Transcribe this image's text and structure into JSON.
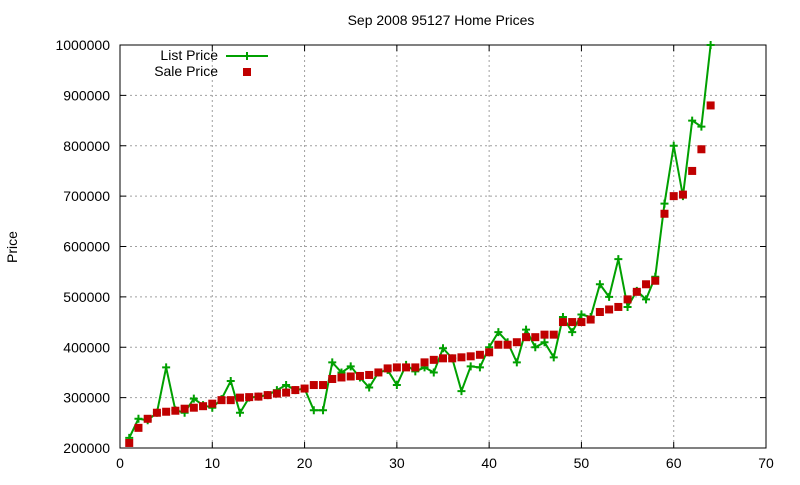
{
  "chart_data": {
    "type": "line",
    "title": "Sep 2008 95127 Home Prices",
    "xlabel": "",
    "ylabel": "Price",
    "xlim": [
      0,
      70
    ],
    "ylim": [
      200000,
      1000000
    ],
    "xticks": [
      0,
      10,
      20,
      30,
      40,
      50,
      60,
      70
    ],
    "yticks": [
      200000,
      300000,
      400000,
      500000,
      600000,
      700000,
      800000,
      900000,
      1000000
    ],
    "grid": true,
    "legend_position": "top-left",
    "colors": {
      "list": "#00a000",
      "sale": "#c00000"
    },
    "series": [
      {
        "name": "List Price",
        "style": "line-with-plus",
        "x": [
          1,
          2,
          3,
          4,
          5,
          6,
          7,
          8,
          9,
          10,
          11,
          12,
          13,
          14,
          15,
          16,
          17,
          18,
          19,
          20,
          21,
          22,
          23,
          24,
          25,
          26,
          27,
          28,
          29,
          30,
          31,
          32,
          33,
          34,
          35,
          36,
          37,
          38,
          39,
          40,
          41,
          42,
          43,
          44,
          45,
          46,
          47,
          48,
          49,
          50,
          51,
          52,
          53,
          54,
          55,
          56,
          57,
          58,
          59,
          60,
          61,
          62,
          63,
          64
        ],
        "y": [
          220000,
          258000,
          255000,
          270000,
          360000,
          275000,
          270000,
          298000,
          285000,
          280000,
          297000,
          333000,
          270000,
          300000,
          302000,
          305000,
          315000,
          325000,
          315000,
          318000,
          275000,
          275000,
          370000,
          350000,
          362000,
          340000,
          320000,
          350000,
          355000,
          325000,
          365000,
          352000,
          360000,
          350000,
          398000,
          378000,
          313000,
          362000,
          360000,
          400000,
          430000,
          410000,
          370000,
          435000,
          400000,
          410000,
          380000,
          460000,
          430000,
          465000,
          460000,
          525000,
          500000,
          575000,
          480000,
          512000,
          495000,
          540000,
          685000,
          800000,
          700000,
          850000,
          838000,
          1000000
        ]
      },
      {
        "name": "Sale Price",
        "style": "square-points",
        "x": [
          1,
          2,
          3,
          4,
          5,
          6,
          7,
          8,
          9,
          10,
          11,
          12,
          13,
          14,
          15,
          16,
          17,
          18,
          19,
          20,
          21,
          22,
          23,
          24,
          25,
          26,
          27,
          28,
          29,
          30,
          31,
          32,
          33,
          34,
          35,
          36,
          37,
          38,
          39,
          40,
          41,
          42,
          43,
          44,
          45,
          46,
          47,
          48,
          49,
          50,
          51,
          52,
          53,
          54,
          55,
          56,
          57,
          58,
          59,
          60,
          61,
          62,
          63,
          64
        ],
        "y": [
          210000,
          240000,
          258000,
          270000,
          272000,
          274000,
          278000,
          280000,
          283000,
          288000,
          295000,
          295000,
          300000,
          301000,
          302000,
          305000,
          308000,
          310000,
          315000,
          318000,
          325000,
          325000,
          337000,
          340000,
          342000,
          343000,
          345000,
          350000,
          358000,
          360000,
          360000,
          360000,
          370000,
          375000,
          378000,
          378000,
          380000,
          382000,
          385000,
          390000,
          405000,
          405000,
          410000,
          420000,
          420000,
          425000,
          425000,
          450000,
          450000,
          450000,
          455000,
          470000,
          475000,
          480000,
          495000,
          510000,
          525000,
          532000,
          665000,
          700000,
          703000,
          750000,
          793000,
          880000
        ]
      }
    ]
  }
}
